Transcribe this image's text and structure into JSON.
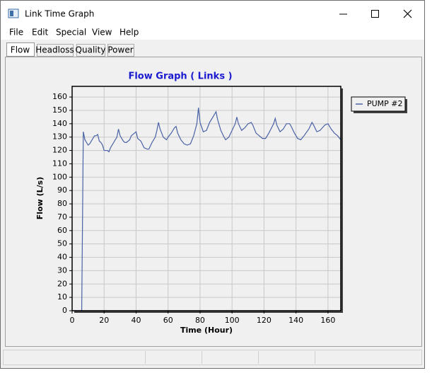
{
  "window": {
    "title": "Link Time Graph"
  },
  "menu": [
    "File",
    "Edit",
    "Special",
    "View",
    "Help"
  ],
  "tabs": [
    "Flow",
    "Headloss",
    "Quality",
    "Power"
  ],
  "chart_data": {
    "type": "line",
    "title": "Flow Graph ( Links )",
    "x_label": "Time (Hour)",
    "y_label": "Flow (L/s)",
    "x": [
      0,
      6,
      7,
      8,
      9,
      10,
      11,
      12,
      13,
      14,
      15,
      16,
      17,
      18,
      19,
      20,
      22,
      23,
      24,
      26,
      28,
      29,
      30,
      32,
      33,
      34,
      36,
      37,
      39,
      40,
      41,
      43,
      45,
      47,
      48,
      50,
      52,
      53,
      54,
      55,
      57,
      59,
      60,
      62,
      64,
      65,
      66,
      68,
      70,
      72,
      74,
      76,
      78,
      79,
      80,
      82,
      84,
      86,
      88,
      90,
      91,
      93,
      95,
      96,
      98,
      100,
      102,
      103,
      104,
      106,
      108,
      110,
      112,
      113,
      115,
      117,
      119,
      121,
      123,
      126,
      127,
      128,
      130,
      132,
      134,
      136,
      137,
      139,
      141,
      143,
      145,
      148,
      150,
      151,
      153,
      155,
      158,
      160,
      162,
      164,
      166,
      168
    ],
    "series": [
      {
        "name": "PUMP #2",
        "color": "#4a62a6",
        "values": [
          0,
          0,
          134,
          128,
          126,
          124,
          125,
          127,
          129,
          131,
          131,
          132,
          127,
          126,
          124,
          120,
          120,
          119,
          122,
          126,
          130,
          136,
          131,
          127,
          126,
          126,
          128,
          131,
          133,
          134,
          129,
          127,
          122,
          121,
          121,
          126,
          130,
          135,
          141,
          136,
          130,
          128,
          130,
          133,
          137,
          138,
          133,
          128,
          125,
          124,
          125,
          131,
          140,
          152,
          141,
          134,
          135,
          141,
          145,
          149,
          143,
          135,
          130,
          128,
          130,
          135,
          140,
          145,
          140,
          135,
          137,
          140,
          141,
          139,
          133,
          131,
          129,
          129,
          133,
          140,
          144,
          139,
          134,
          136,
          140,
          140,
          138,
          133,
          129,
          128,
          131,
          136,
          141,
          139,
          134,
          135,
          139,
          140,
          136,
          133,
          131,
          128
        ]
      }
    ],
    "xlim": [
      0,
      168
    ],
    "ylim": [
      0,
      168
    ],
    "xticks": [
      0,
      20,
      40,
      60,
      80,
      100,
      120,
      140,
      160
    ],
    "yticks": [
      0,
      10,
      20,
      30,
      40,
      50,
      60,
      70,
      80,
      90,
      100,
      110,
      120,
      130,
      140,
      150,
      160
    ],
    "grid": true,
    "legend": "right"
  }
}
